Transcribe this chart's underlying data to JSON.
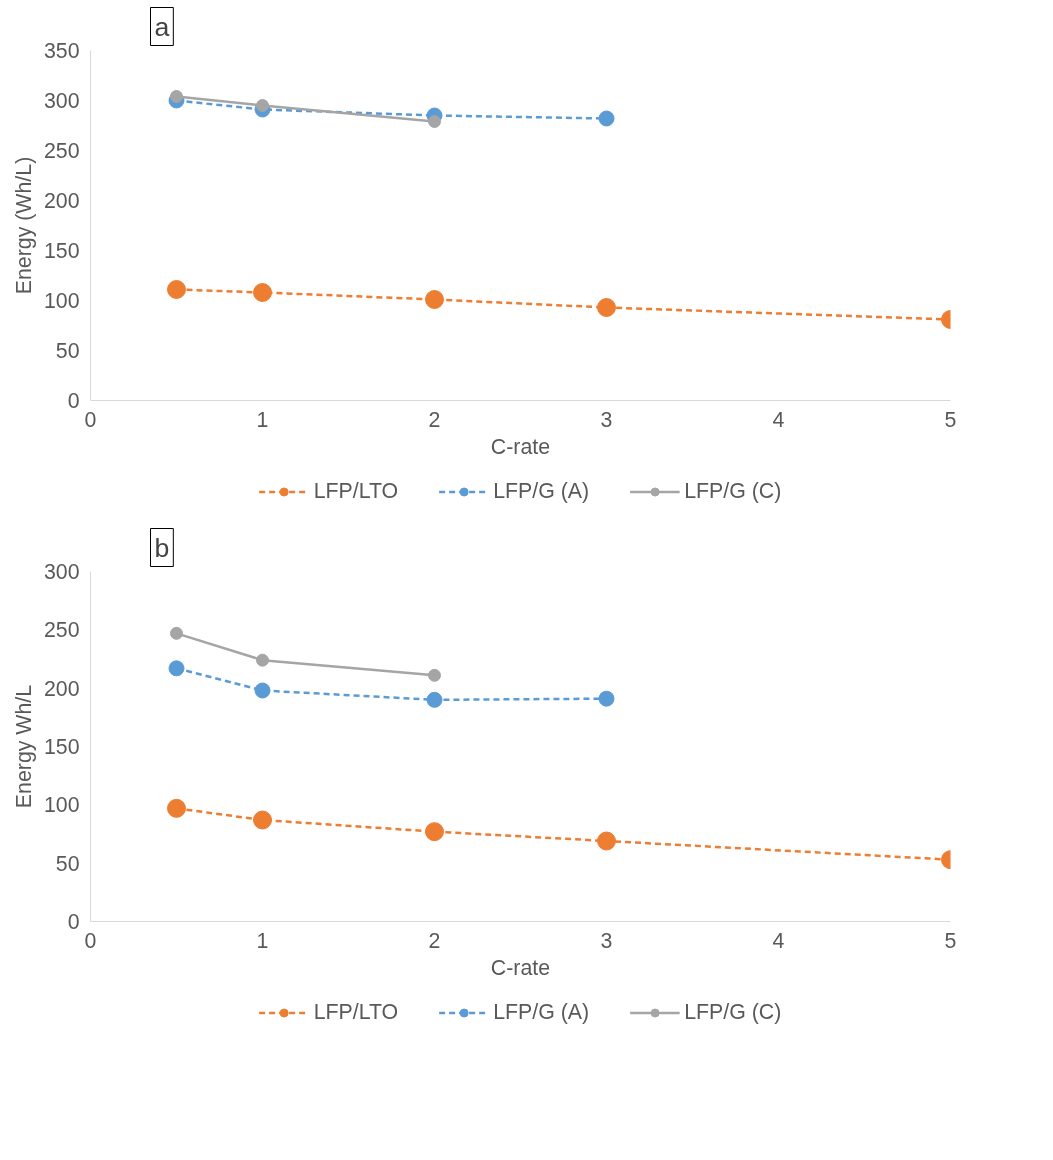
{
  "chart_data": [
    {
      "type": "line",
      "title": "a",
      "xlabel": "C-rate",
      "ylabel": "Energy (Wh/L)",
      "x": [
        0.5,
        1,
        2,
        3,
        5
      ],
      "xlim": [
        0,
        5
      ],
      "xticks": [
        0,
        1,
        2,
        3,
        4,
        5
      ],
      "ylim": [
        0,
        350
      ],
      "yticks": [
        0,
        50,
        100,
        150,
        200,
        250,
        300,
        350
      ],
      "grid": false,
      "legend": "bottom",
      "marker": "circle",
      "series": [
        {
          "name": "LFP/LTO",
          "color": "#ed7d31",
          "line_style": "dashed",
          "values": [
            111,
            108,
            101,
            93,
            81
          ]
        },
        {
          "name": "LFP/G (A)",
          "color": "#5b9bd5",
          "line_style": "dashed",
          "values": [
            300,
            291,
            285,
            282,
            null
          ]
        },
        {
          "name": "LFP/G (C)",
          "color": "#a5a5a5",
          "line_style": "solid",
          "values": [
            304,
            295,
            279,
            null,
            null
          ]
        }
      ]
    },
    {
      "type": "line",
      "title": "b",
      "xlabel": "C-rate",
      "ylabel": "Energy Wh/L",
      "x": [
        0.5,
        1,
        2,
        3,
        5
      ],
      "xlim": [
        0,
        5
      ],
      "xticks": [
        0,
        1,
        2,
        3,
        4,
        5
      ],
      "ylim": [
        0,
        300
      ],
      "yticks": [
        0,
        50,
        100,
        150,
        200,
        250,
        300
      ],
      "grid": false,
      "legend": "bottom",
      "marker": "circle",
      "series": [
        {
          "name": "LFP/LTO",
          "color": "#ed7d31",
          "line_style": "dashed",
          "values": [
            97,
            87,
            77,
            69,
            53
          ]
        },
        {
          "name": "LFP/G (A)",
          "color": "#5b9bd5",
          "line_style": "dashed",
          "values": [
            217,
            198,
            190,
            191,
            null
          ]
        },
        {
          "name": "LFP/G (C)",
          "color": "#a5a5a5",
          "line_style": "solid",
          "values": [
            247,
            224,
            211,
            null,
            null
          ]
        }
      ]
    }
  ]
}
